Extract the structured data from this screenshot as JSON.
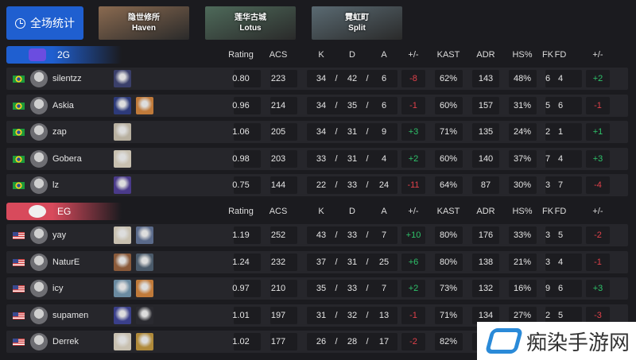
{
  "overall_button": {
    "label": "全场统计",
    "icon": "pie-clock-icon"
  },
  "maps": [
    {
      "cn": "隐世修所",
      "en": "Haven",
      "color": "#8a6a50"
    },
    {
      "cn": "莲华古城",
      "en": "Lotus",
      "color": "#4e6a5a"
    },
    {
      "cn": "霓虹町",
      "en": "Split",
      "color": "#5a6a72"
    }
  ],
  "columns": [
    "Rating",
    "ACS",
    "K",
    "D",
    "A",
    "+/-",
    "KAST",
    "ADR",
    "HS%",
    "FK",
    "FD",
    "+/-"
  ],
  "teams": [
    {
      "name": "2G",
      "color": "#1f5fd0",
      "logo_color": "#6b4de0",
      "flag": "brazil",
      "players": [
        {
          "name": "silentzz",
          "agents": [
            "#3a3f6a"
          ],
          "rating": "0.80",
          "acs": "223",
          "k": "34",
          "d": "42",
          "a": "6",
          "pm": "-8",
          "kast": "62%",
          "adr": "143",
          "hs": "48%",
          "fk": "6",
          "fd": "4",
          "fpm": "+2"
        },
        {
          "name": "Askia",
          "agents": [
            "#2d3a7a",
            "#c07a3a"
          ],
          "rating": "0.96",
          "acs": "214",
          "k": "34",
          "d": "35",
          "a": "6",
          "pm": "-1",
          "kast": "60%",
          "adr": "157",
          "hs": "31%",
          "fk": "5",
          "fd": "6",
          "fpm": "-1"
        },
        {
          "name": "zap",
          "agents": [
            "#b8b0a0"
          ],
          "rating": "1.06",
          "acs": "205",
          "k": "34",
          "d": "31",
          "a": "9",
          "pm": "+3",
          "kast": "71%",
          "adr": "135",
          "hs": "24%",
          "fk": "2",
          "fd": "1",
          "fpm": "+1"
        },
        {
          "name": "Gobera",
          "agents": [
            "#c8c0b0"
          ],
          "rating": "0.98",
          "acs": "203",
          "k": "33",
          "d": "31",
          "a": "4",
          "pm": "+2",
          "kast": "60%",
          "adr": "140",
          "hs": "37%",
          "fk": "7",
          "fd": "4",
          "fpm": "+3"
        },
        {
          "name": "lz",
          "agents": [
            "#4a3a8a"
          ],
          "rating": "0.75",
          "acs": "144",
          "k": "22",
          "d": "33",
          "a": "24",
          "pm": "-11",
          "kast": "64%",
          "adr": "87",
          "hs": "30%",
          "fk": "3",
          "fd": "7",
          "fpm": "-4"
        }
      ]
    },
    {
      "name": "EG",
      "color": "#d84a5c",
      "logo_color": "#f0f0f0",
      "flag": "usa",
      "players": [
        {
          "name": "yay",
          "agents": [
            "#c8c0b0",
            "#5a6a8a"
          ],
          "rating": "1.19",
          "acs": "252",
          "k": "43",
          "d": "33",
          "a": "7",
          "pm": "+10",
          "kast": "80%",
          "adr": "176",
          "hs": "33%",
          "fk": "3",
          "fd": "5",
          "fpm": "-2"
        },
        {
          "name": "NaturE",
          "agents": [
            "#8a5a3a",
            "#4a5a6a"
          ],
          "rating": "1.24",
          "acs": "232",
          "k": "37",
          "d": "31",
          "a": "25",
          "pm": "+6",
          "kast": "80%",
          "adr": "138",
          "hs": "21%",
          "fk": "3",
          "fd": "4",
          "fpm": "-1"
        },
        {
          "name": "icy",
          "agents": [
            "#6a8aa0",
            "#c07a3a"
          ],
          "rating": "0.97",
          "acs": "210",
          "k": "35",
          "d": "33",
          "a": "7",
          "pm": "+2",
          "kast": "73%",
          "adr": "132",
          "hs": "16%",
          "fk": "9",
          "fd": "6",
          "fpm": "+3"
        },
        {
          "name": "supamen",
          "agents": [
            "#3a3f8a",
            "#2a2a30"
          ],
          "rating": "1.01",
          "acs": "197",
          "k": "31",
          "d": "32",
          "a": "13",
          "pm": "-1",
          "kast": "71%",
          "adr": "134",
          "hs": "27%",
          "fk": "2",
          "fd": "5",
          "fpm": "-3"
        },
        {
          "name": "Derrek",
          "agents": [
            "#c8c0b0",
            "#b08a3a"
          ],
          "rating": "1.02",
          "acs": "177",
          "k": "26",
          "d": "28",
          "a": "17",
          "pm": "-2",
          "kast": "82%",
          "adr": "",
          "hs": "",
          "fk": "",
          "fd": "",
          "fpm": ""
        }
      ]
    }
  ],
  "watermark": "痴染手游网"
}
